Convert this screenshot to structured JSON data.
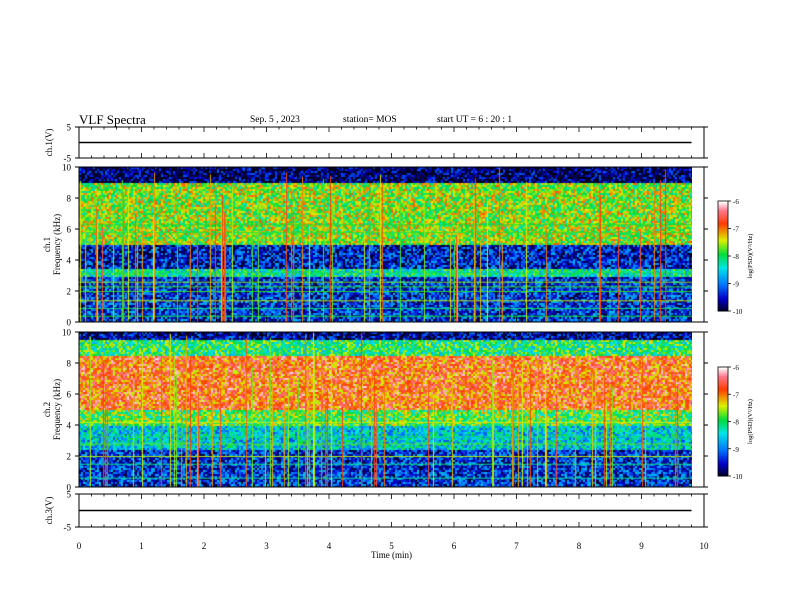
{
  "header": {
    "title": "VLF Spectra",
    "date": "Sep. 5 , 2023",
    "station": "station= MOS",
    "start": "start  UT  =   6 : 20 : 1"
  },
  "chart_data": [
    {
      "type": "line",
      "panel": "ch.1 voltage",
      "ylabel": "ch.1(V)",
      "ylim": [
        -5,
        5
      ],
      "yticks": [
        5,
        -5
      ],
      "series": [
        {
          "x": [
            0,
            9.8
          ],
          "values": [
            0,
            0
          ]
        }
      ]
    },
    {
      "type": "heatmap",
      "panel": "ch.1 spectrogram",
      "ylabel": "ch.1\nFrequency (kHz)",
      "ylabel_lines": [
        "ch.1",
        "Frequency (kHz)"
      ],
      "ylim": [
        0,
        10
      ],
      "yticks": [
        0,
        2,
        4,
        6,
        8,
        10
      ],
      "xlim": [
        0,
        9.8
      ],
      "colorbar": {
        "label": "log(PSD)(V²/Hz)",
        "range": [
          -10,
          -6
        ],
        "ticks": [
          -6,
          -7,
          -8,
          -9,
          -10
        ]
      },
      "bands": [
        {
          "from": 0,
          "to": 3.0,
          "level": -9.3
        },
        {
          "from": 3.0,
          "to": 3.5,
          "level": -8.2
        },
        {
          "from": 3.5,
          "to": 5.0,
          "level": -9.4
        },
        {
          "from": 5.0,
          "to": 9.0,
          "level": -7.6
        },
        {
          "from": 9.0,
          "to": 10,
          "level": -9.8
        }
      ]
    },
    {
      "type": "heatmap",
      "panel": "ch.2 spectrogram",
      "ylabel": "ch.2\nFrequency (kHz)",
      "ylabel_lines": [
        "ch.2",
        "Frequency (kHz)"
      ],
      "ylim": [
        0,
        10
      ],
      "yticks": [
        0,
        2,
        4,
        6,
        8,
        10
      ],
      "xlim": [
        0,
        9.8
      ],
      "colorbar": {
        "label": "log(PSD)(V²/Hz)",
        "range": [
          -10,
          -6
        ],
        "ticks": [
          -6,
          -7,
          -8,
          -9,
          -10
        ]
      },
      "bands": [
        {
          "from": 0,
          "to": 2.5,
          "level": -9.3
        },
        {
          "from": 2.5,
          "to": 4.0,
          "level": -8.5
        },
        {
          "from": 4.0,
          "to": 5.0,
          "level": -7.8
        },
        {
          "from": 5.0,
          "to": 8.5,
          "level": -6.8
        },
        {
          "from": 8.5,
          "to": 9.5,
          "level": -8.0
        },
        {
          "from": 9.5,
          "to": 10,
          "level": -9.6
        }
      ]
    },
    {
      "type": "line",
      "panel": "ch.3 voltage",
      "ylabel": "ch.3(V)",
      "ylim": [
        -5,
        5
      ],
      "yticks": [
        5,
        -5
      ],
      "series": [
        {
          "x": [
            0,
            9.8
          ],
          "values": [
            0,
            0
          ]
        }
      ]
    }
  ],
  "xaxis": {
    "label": "Time  (min)",
    "range": [
      0,
      10
    ],
    "ticks": [
      0,
      1,
      2,
      3,
      4,
      5,
      6,
      7,
      8,
      9,
      10
    ]
  }
}
